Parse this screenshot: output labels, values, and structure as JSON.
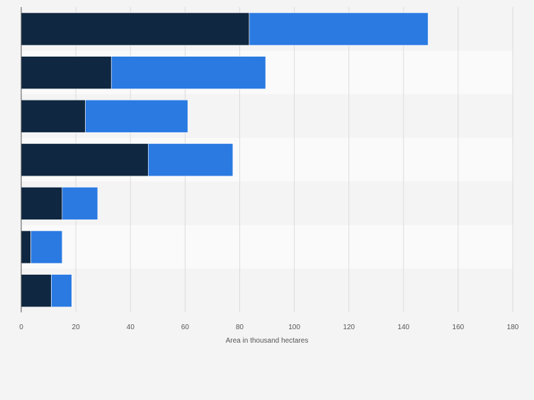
{
  "chart_data": {
    "type": "bar",
    "orientation": "horizontal",
    "stacked": true,
    "categories": [
      "",
      "",
      "",
      "",
      "",
      "",
      ""
    ],
    "series": [
      {
        "values": [
          83.5,
          33,
          23.5,
          46.5,
          15,
          3.5,
          11
        ]
      },
      {
        "values": [
          65.5,
          56.5,
          37.5,
          31,
          13,
          11.5,
          7.5
        ]
      }
    ],
    "colors": [
      "#0f2740",
      "#2a7ae2"
    ],
    "band_colors": [
      "#f4f4f4",
      "#fafafa"
    ],
    "xlabel": "Area in thousand hectares",
    "ylabel": "",
    "xlim": [
      0,
      180
    ],
    "xticks": [
      0,
      20,
      40,
      60,
      80,
      100,
      120,
      140,
      160,
      180
    ],
    "xtick_labels": [
      "0",
      "20",
      "40",
      "60",
      "80",
      "100",
      "120",
      "140",
      "160",
      "180"
    ],
    "grid": true,
    "legend": "none"
  }
}
